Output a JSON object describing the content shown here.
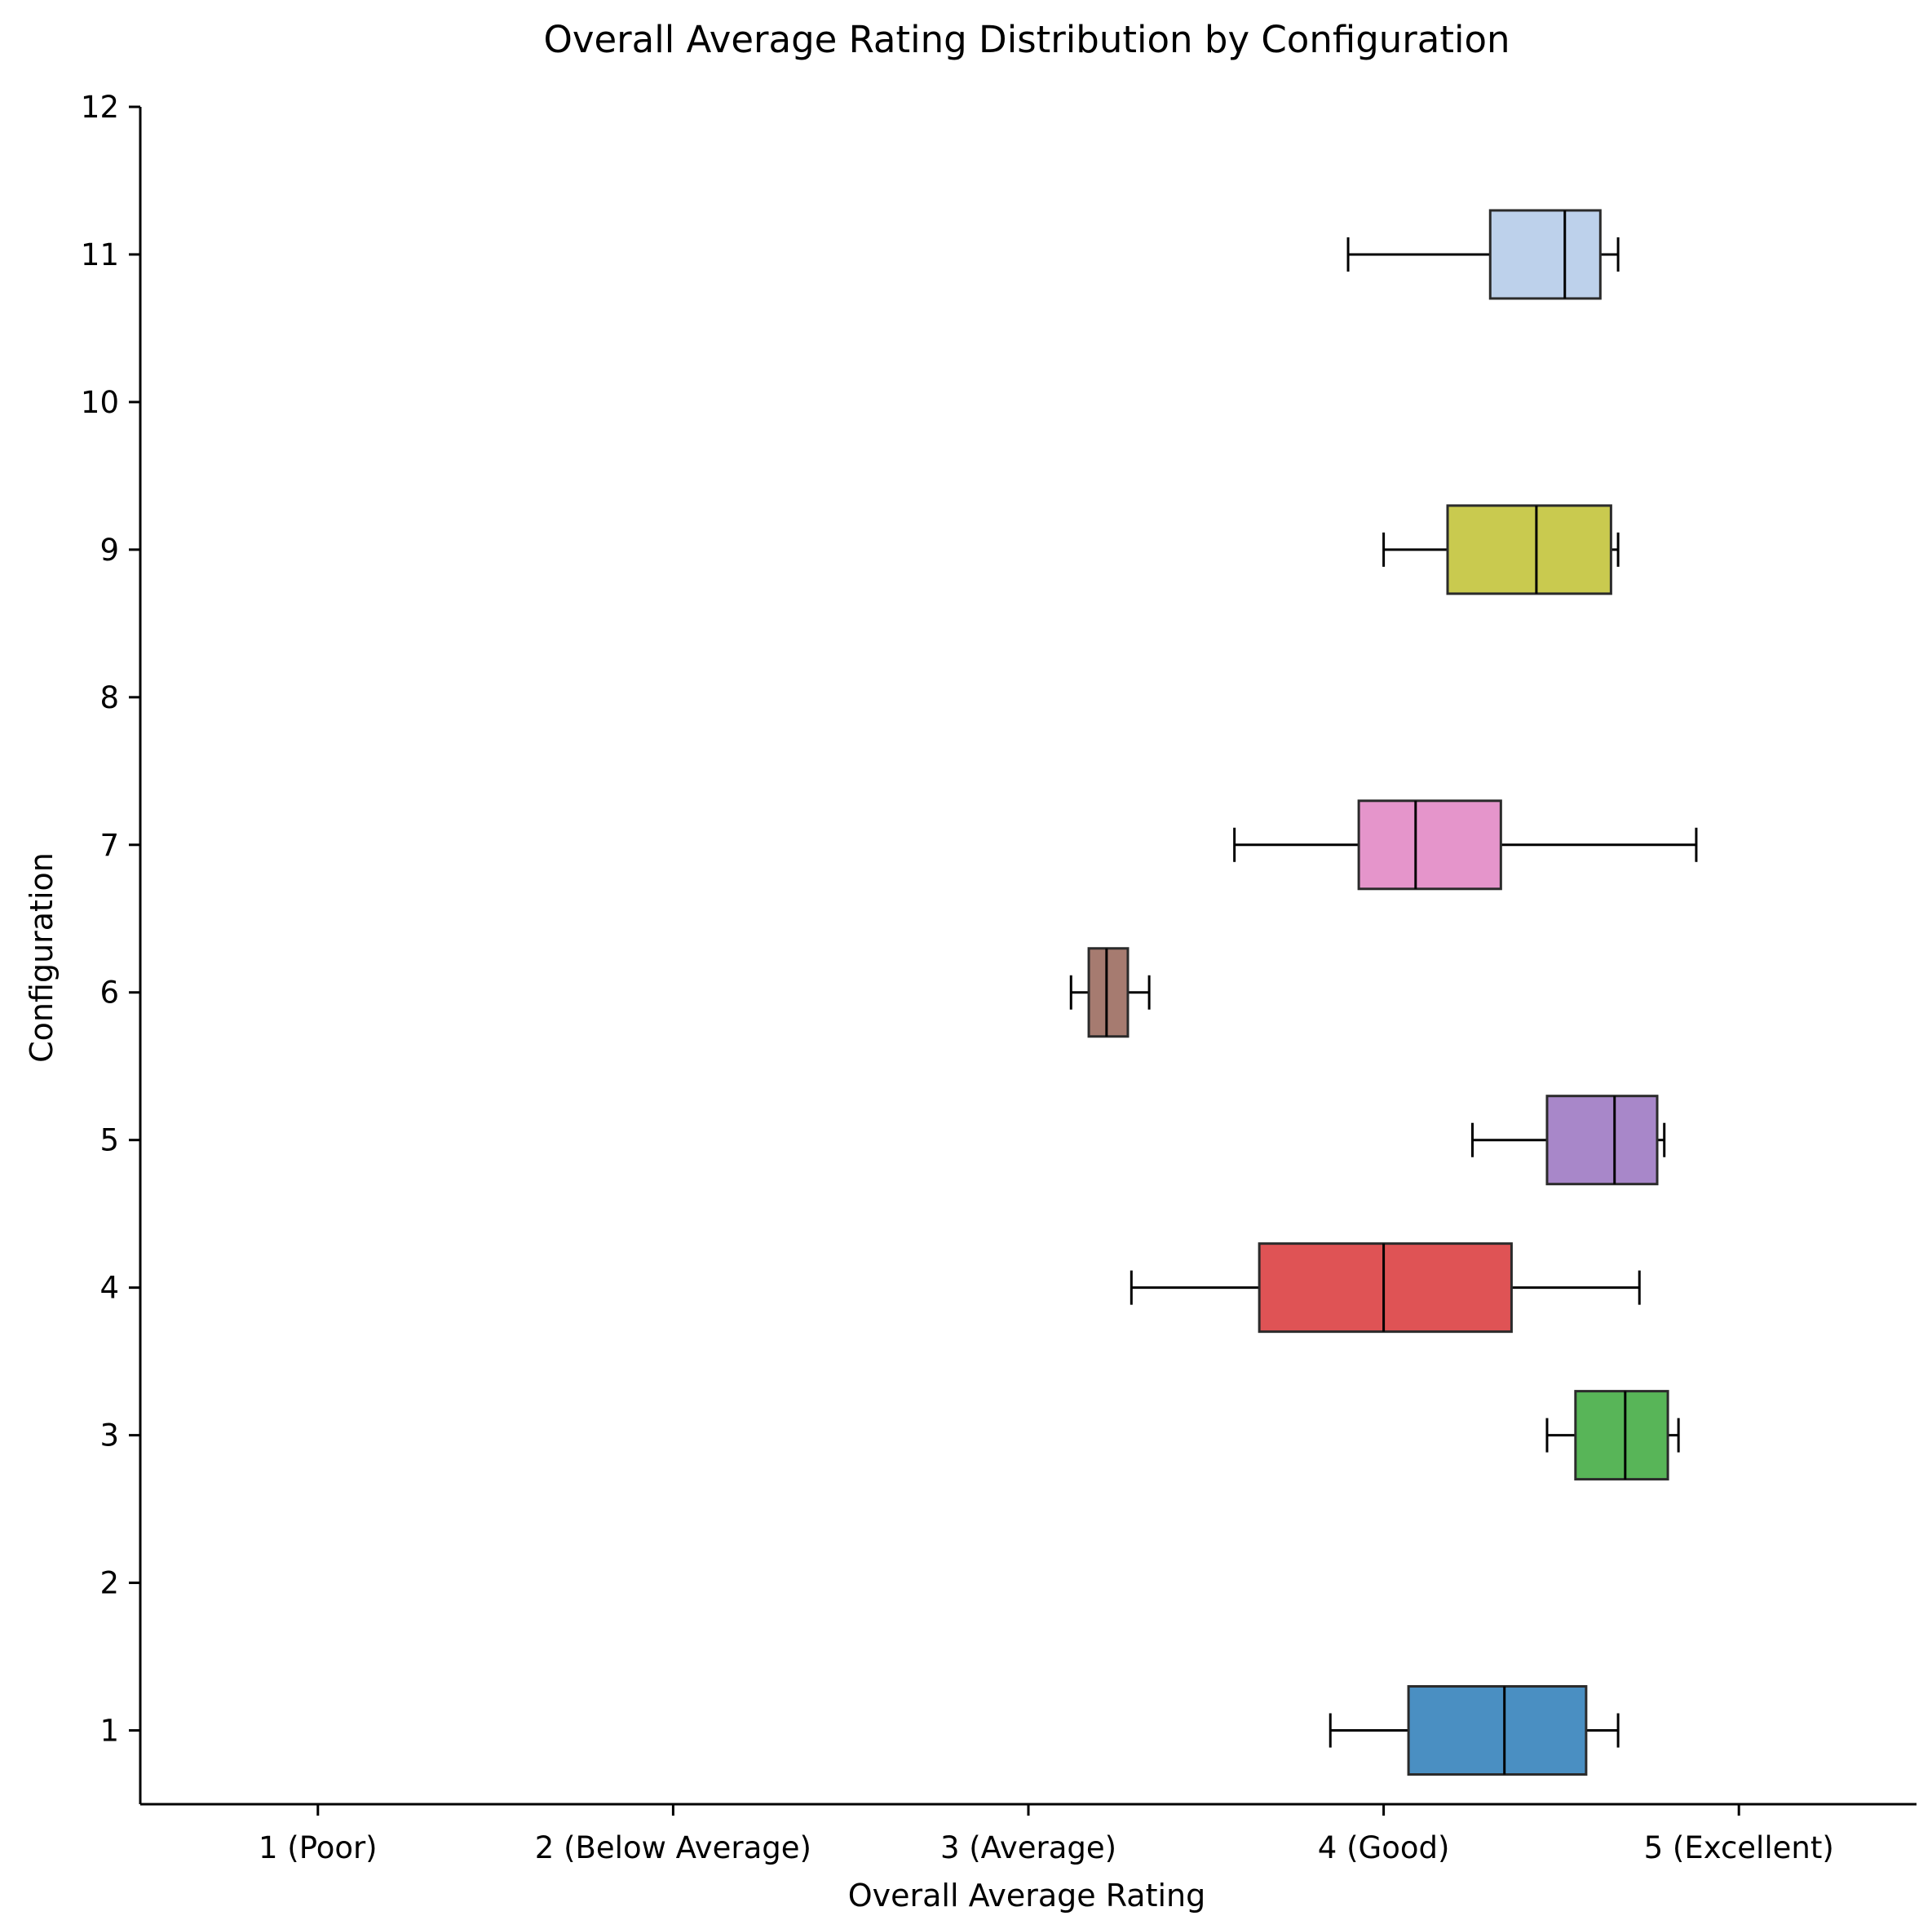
{
  "chart_data": {
    "type": "boxplot",
    "orientation": "horizontal",
    "title": "Overall Average Rating Distribution by Configuration",
    "xlabel": "Overall Average Rating",
    "ylabel": "Configuration",
    "xlim": [
      0.5,
      5.5
    ],
    "ylim": [
      0.5,
      12
    ],
    "x_ticks": [
      {
        "value": 1,
        "label": "1 (Poor)"
      },
      {
        "value": 2,
        "label": "2 (Below Average)"
      },
      {
        "value": 3,
        "label": "3 (Average)"
      },
      {
        "value": 4,
        "label": "4 (Good)"
      },
      {
        "value": 5,
        "label": "5 (Excellent)"
      }
    ],
    "y_ticks": [
      "1",
      "2",
      "3",
      "4",
      "5",
      "6",
      "7",
      "8",
      "9",
      "10",
      "11",
      "12"
    ],
    "grid": false,
    "boxes": [
      {
        "configuration": 1,
        "whisker_low": 3.85,
        "q1": 4.07,
        "median": 4.34,
        "q3": 4.57,
        "whisker_high": 4.66,
        "color": "#4a8fc2"
      },
      {
        "configuration": 3,
        "whisker_low": 4.46,
        "q1": 4.54,
        "median": 4.68,
        "q3": 4.8,
        "whisker_high": 4.83,
        "color": "#58b558"
      },
      {
        "configuration": 4,
        "whisker_low": 3.29,
        "q1": 3.65,
        "median": 4.0,
        "q3": 4.36,
        "whisker_high": 4.72,
        "color": "#df5355"
      },
      {
        "configuration": 5,
        "whisker_low": 4.25,
        "q1": 4.46,
        "median": 4.65,
        "q3": 4.77,
        "whisker_high": 4.79,
        "color": "#a887c9"
      },
      {
        "configuration": 6,
        "whisker_low": 3.12,
        "q1": 3.17,
        "median": 3.22,
        "q3": 3.28,
        "whisker_high": 3.34,
        "color": "#a67b70"
      },
      {
        "configuration": 7,
        "whisker_low": 3.58,
        "q1": 3.93,
        "median": 4.09,
        "q3": 4.33,
        "whisker_high": 4.88,
        "color": "#e595cb"
      },
      {
        "configuration": 9,
        "whisker_low": 4.0,
        "q1": 4.18,
        "median": 4.43,
        "q3": 4.64,
        "whisker_high": 4.66,
        "color": "#c9ca4f"
      },
      {
        "configuration": 11,
        "whisker_low": 3.9,
        "q1": 4.3,
        "median": 4.51,
        "q3": 4.61,
        "whisker_high": 4.66,
        "color": "#bdd1eb"
      }
    ]
  }
}
